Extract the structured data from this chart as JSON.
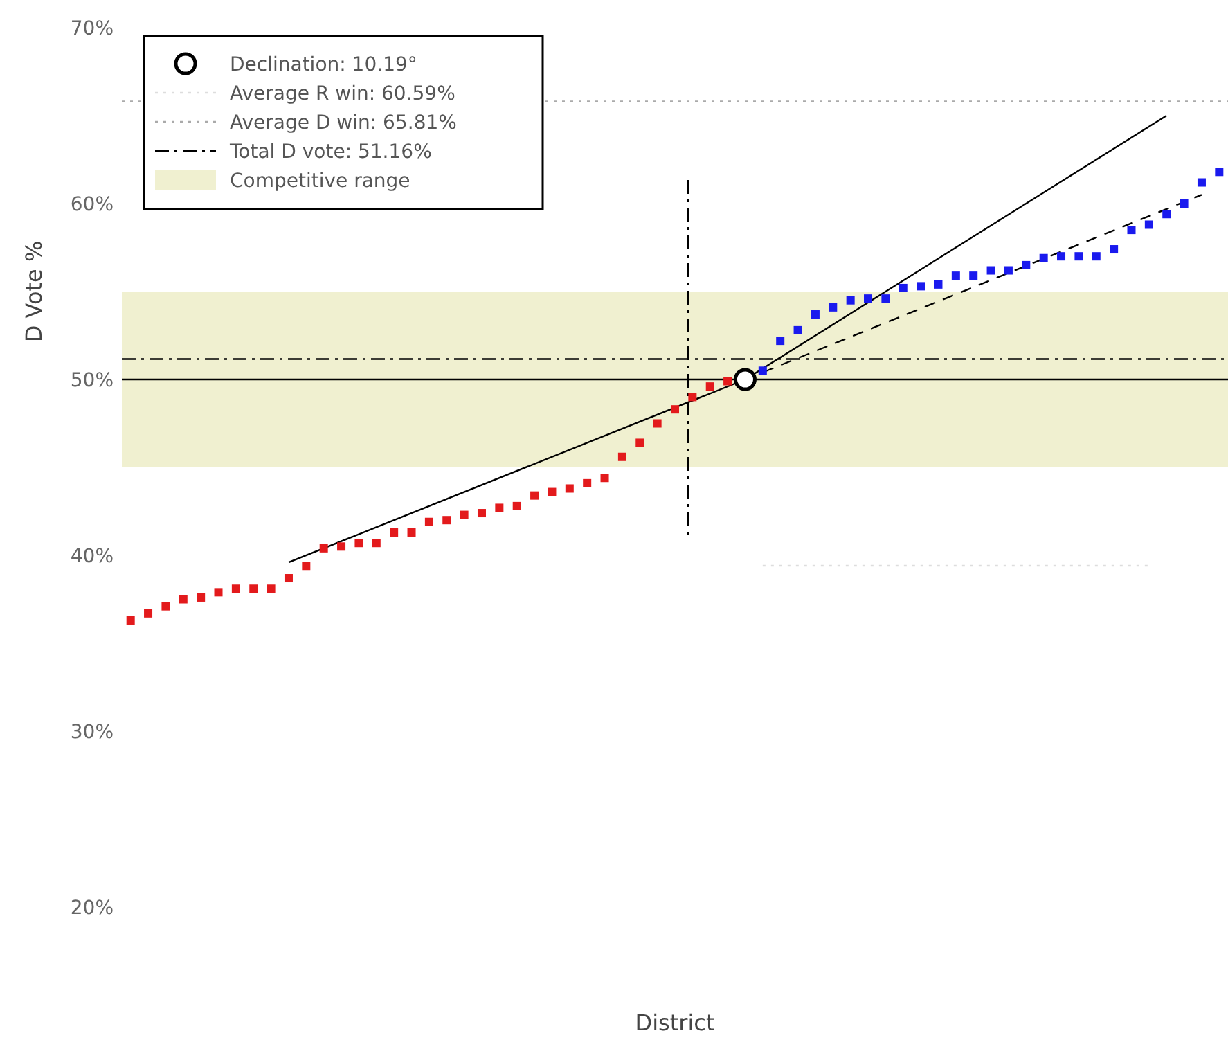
{
  "chart_data": {
    "type": "scatter",
    "xlabel": "District",
    "ylabel": "D Vote %",
    "ylim": [
      20,
      70
    ],
    "categories": [
      null,
      null,
      null,
      null,
      null,
      null,
      null,
      null,
      null,
      null,
      null,
      null,
      null,
      null,
      null,
      null,
      null,
      null,
      null,
      null,
      null,
      null,
      null,
      null,
      null,
      null,
      null,
      null,
      null,
      null,
      null,
      null,
      null,
      null,
      null,
      null,
      null,
      null,
      null,
      null,
      null,
      null,
      null,
      null,
      null,
      null,
      null,
      null,
      null,
      null,
      null,
      null,
      null,
      null,
      null,
      null,
      null,
      null,
      null,
      null,
      null,
      null,
      null
    ],
    "yticks": [
      {
        "value": 20,
        "label": "20%"
      },
      {
        "value": 30,
        "label": "30%"
      },
      {
        "value": 40,
        "label": "40%"
      },
      {
        "value": 50,
        "label": "50%"
      },
      {
        "value": 60,
        "label": "60%"
      },
      {
        "value": 70,
        "label": "70%"
      }
    ],
    "tick_labels": "y",
    "grid": false,
    "legend": "top left",
    "marker": "square",
    "series": [
      {
        "name": "Declination: 10.19°",
        "color": "#000000",
        "marker": "circle",
        "values": [
          null,
          null,
          null,
          null,
          null,
          null,
          null,
          null,
          null,
          null,
          null,
          null,
          null,
          null,
          null,
          null,
          null,
          null,
          null,
          null,
          null,
          null,
          null,
          null,
          null,
          null,
          null,
          null,
          null,
          null,
          null,
          null,
          null,
          null,
          null,
          50,
          null,
          null,
          null,
          null,
          null,
          null,
          null,
          null,
          null,
          null,
          null,
          null,
          null,
          null,
          null,
          null,
          null,
          null,
          null,
          null,
          null,
          null,
          null,
          null,
          null,
          null,
          null
        ]
      },
      {
        "type": "line",
        "color": "#000000",
        "line_style": "solid",
        "marker": "none",
        "values": [
          null,
          null,
          null,
          null,
          null,
          null,
          null,
          null,
          null,
          39.6,
          null,
          null,
          null,
          null,
          null,
          null,
          null,
          null,
          null,
          null,
          null,
          null,
          null,
          null,
          null,
          null,
          null,
          null,
          null,
          null,
          null,
          null,
          null,
          null,
          null,
          50,
          null,
          null,
          null,
          null,
          null,
          null,
          null,
          null,
          null,
          null,
          null,
          null,
          null,
          null,
          null,
          null,
          null,
          null,
          null,
          null,
          null,
          null,
          null,
          65.0,
          null,
          null,
          null
        ]
      },
      {
        "type": "line",
        "color": "#000000",
        "line_style": "dashed",
        "marker": "none",
        "values": [
          null,
          null,
          null,
          null,
          null,
          null,
          null,
          null,
          null,
          null,
          null,
          null,
          null,
          null,
          null,
          null,
          null,
          null,
          null,
          null,
          null,
          null,
          null,
          null,
          null,
          null,
          null,
          null,
          null,
          null,
          null,
          null,
          null,
          null,
          null,
          50,
          null,
          null,
          null,
          null,
          null,
          null,
          null,
          null,
          null,
          null,
          null,
          null,
          null,
          null,
          null,
          null,
          null,
          null,
          null,
          null,
          null,
          null,
          null,
          null,
          null,
          60.5,
          null
        ]
      },
      {
        "type": "line",
        "name": "Average R win: 60.59%",
        "color": "#dddddd",
        "line_style": "dotted",
        "marker": "none",
        "values": [
          null,
          null,
          null,
          null,
          null,
          null,
          null,
          null,
          null,
          null,
          null,
          null,
          null,
          null,
          null,
          null,
          null,
          null,
          null,
          null,
          null,
          null,
          null,
          null,
          null,
          null,
          null,
          null,
          null,
          null,
          null,
          null,
          null,
          null,
          null,
          null,
          39.41,
          null,
          null,
          null,
          null,
          null,
          null,
          null,
          null,
          null,
          null,
          null,
          null,
          null,
          null,
          null,
          null,
          null,
          null,
          null,
          null,
          null,
          39.41,
          null,
          null,
          null,
          null
        ]
      },
      {
        "color": "#e31a1c",
        "values": [
          36.3,
          36.7,
          37.1,
          37.5,
          37.6,
          37.9,
          38.1,
          38.1,
          38.1,
          38.7,
          39.4,
          40.4,
          40.5,
          40.7,
          40.7,
          41.3,
          41.3,
          41.9,
          42.0,
          42.3,
          42.4,
          42.7,
          42.8,
          43.4,
          43.6,
          43.8,
          44.1,
          44.4,
          45.6,
          46.4,
          47.5,
          48.3,
          49.0,
          49.6,
          49.9,
          null,
          null,
          null,
          null,
          null,
          null,
          null,
          null,
          null,
          null,
          null,
          null,
          null,
          null,
          null,
          null,
          null,
          null,
          null,
          null,
          null,
          null,
          null,
          null,
          null,
          null,
          null,
          null
        ]
      },
      {
        "color": "#1a1aee",
        "values": [
          null,
          null,
          null,
          null,
          null,
          null,
          null,
          null,
          null,
          null,
          null,
          null,
          null,
          null,
          null,
          null,
          null,
          null,
          null,
          null,
          null,
          null,
          null,
          null,
          null,
          null,
          null,
          null,
          null,
          null,
          null,
          null,
          null,
          null,
          null,
          null,
          50.5,
          52.2,
          52.8,
          53.7,
          54.1,
          54.5,
          54.6,
          54.6,
          55.2,
          55.3,
          55.4,
          55.9,
          55.9,
          56.2,
          56.2,
          56.5,
          56.9,
          57.0,
          57.0,
          57.0,
          57.4,
          58.5,
          58.8,
          59.4,
          60.0,
          61.2,
          61.8
        ]
      }
    ],
    "ref_lines": [
      {
        "axis": "y",
        "value": 65.81,
        "label": "Average D win: 65.81%",
        "color": "#aaaaaa",
        "line_style": "dotted"
      },
      {
        "axis": "y",
        "value": 50,
        "color": "#000000",
        "line_style": "solid"
      },
      {
        "axis": "y",
        "value": 51.16,
        "label": "Total D vote: 51.16%",
        "color": "#000000",
        "line_style": "dashdot"
      }
    ],
    "bands": [
      {
        "axis": "y",
        "from": 45,
        "to": 55,
        "label": "Competitive range",
        "color": "#f0f0d0"
      }
    ]
  }
}
